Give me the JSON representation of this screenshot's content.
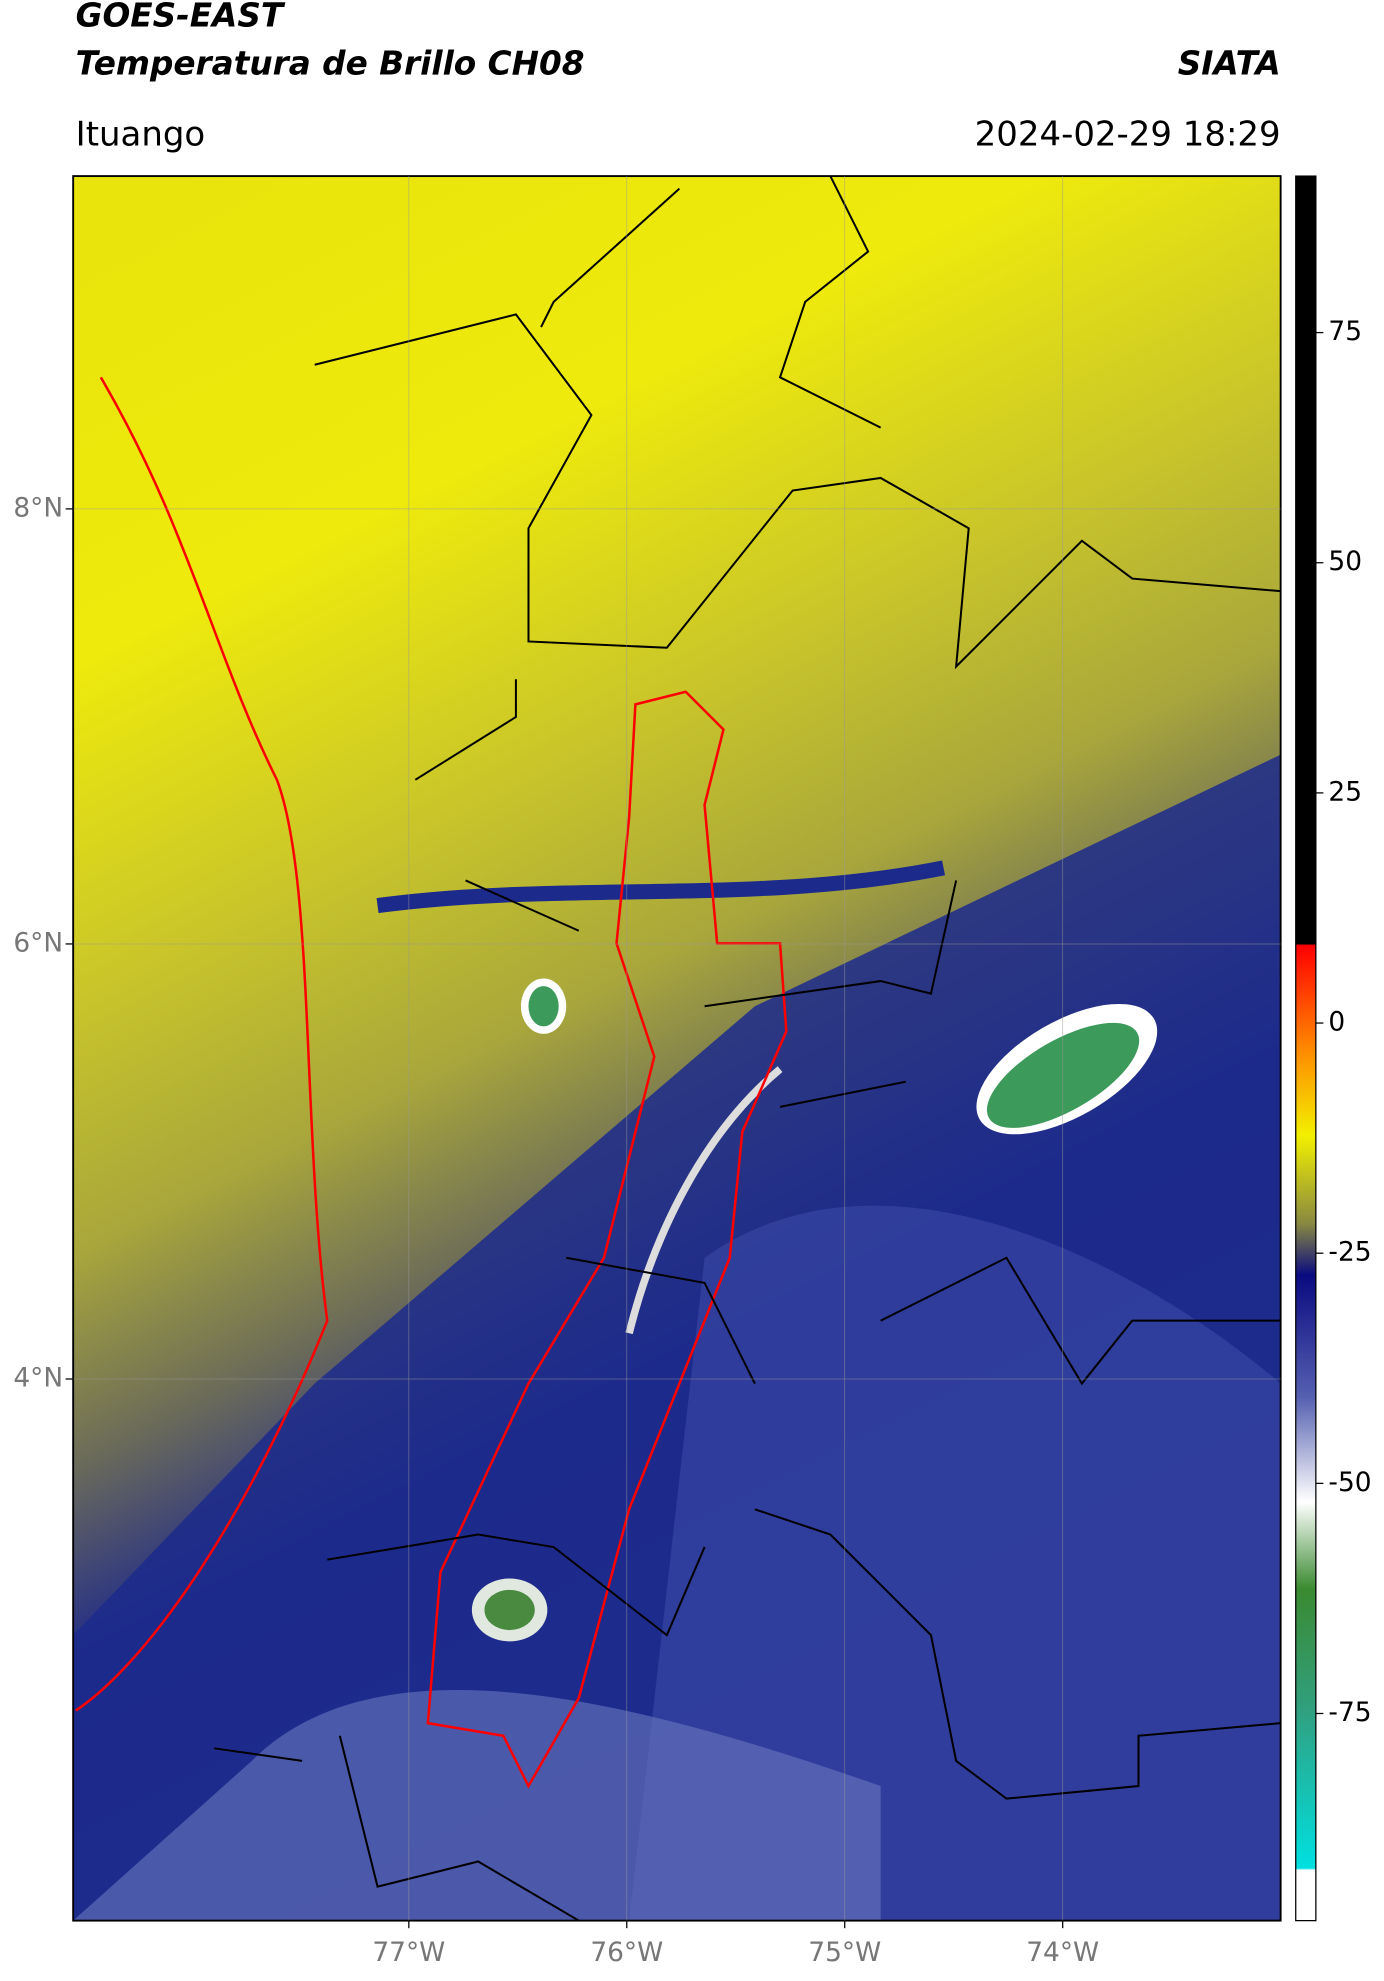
{
  "header": {
    "title_line1": "GOES-EAST",
    "title_line2": "Temperatura de Brillo CH08",
    "source": "SIATA",
    "region": "Ituango",
    "datetime": "2024-02-29 18:29"
  },
  "map": {
    "xlim": [
      -78.54,
      -73.0
    ],
    "ylim": [
      1.51,
      9.53
    ],
    "xticks": [
      {
        "value": -77,
        "label": "77°W"
      },
      {
        "value": -76,
        "label": "76°W"
      },
      {
        "value": -75,
        "label": "75°W"
      },
      {
        "value": -74,
        "label": "74°W"
      }
    ],
    "yticks": [
      {
        "value": 8,
        "label": "8°N"
      },
      {
        "value": 6,
        "label": "6°N"
      },
      {
        "value": 4,
        "label": "4°N"
      }
    ],
    "grid": true
  },
  "colorbar": {
    "lim": [
      -97.5,
      92
    ],
    "ticks": [
      75,
      50,
      25,
      0,
      -25,
      -50,
      -75
    ]
  }
}
